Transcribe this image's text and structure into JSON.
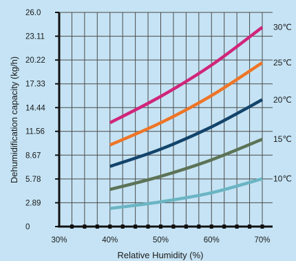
{
  "chart_data": {
    "type": "line",
    "title": "",
    "xlabel": "Relative Humidity (%)",
    "ylabel": "Dehumidification capacity (kg/h)",
    "xlim": [
      30,
      70
    ],
    "ylim": [
      0,
      26.0
    ],
    "xticks": [
      30,
      40,
      50,
      60,
      70
    ],
    "xtick_labels": [
      "30%",
      "40%",
      "50%",
      "60%",
      "70%"
    ],
    "yticks": [
      0,
      2.89,
      5.78,
      8.67,
      11.56,
      14.44,
      17.33,
      20.22,
      23.11,
      26.0
    ],
    "ytick_labels": [
      "0",
      "2.89",
      "5.78",
      "8.67",
      "11.56",
      "14.44",
      "17.33",
      "20.22",
      "23.11",
      "26.0"
    ],
    "grid": true,
    "series": [
      {
        "name": "30℃",
        "color": "#d0267a",
        "x": [
          40,
          50,
          60,
          70
        ],
        "values": [
          12.6,
          15.8,
          19.6,
          24.2
        ]
      },
      {
        "name": "25℃",
        "color": "#ee7527",
        "x": [
          40,
          50,
          60,
          70
        ],
        "values": [
          9.9,
          12.6,
          15.9,
          19.9
        ]
      },
      {
        "name": "20℃",
        "color": "#13446b",
        "x": [
          40,
          50,
          60,
          70
        ],
        "values": [
          7.3,
          9.4,
          12.1,
          15.4
        ]
      },
      {
        "name": "15℃",
        "color": "#5c7356",
        "x": [
          40,
          50,
          60,
          70
        ],
        "values": [
          4.5,
          6.1,
          8.1,
          10.6
        ]
      },
      {
        "name": "10℃",
        "color": "#6bb5c4",
        "x": [
          40,
          50,
          60,
          70
        ],
        "values": [
          2.2,
          3.0,
          4.1,
          5.8
        ]
      }
    ]
  }
}
